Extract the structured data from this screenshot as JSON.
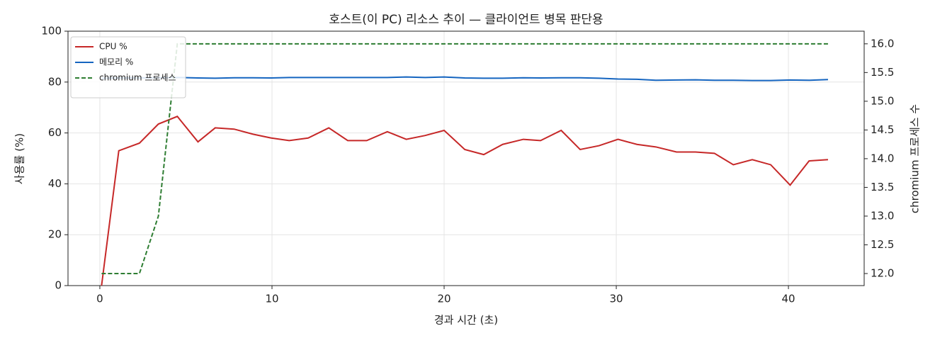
{
  "chart_data": {
    "type": "line",
    "title": "호스트(이 PC) 리소스 추이 — 클라이언트 병목 판단용",
    "xlabel": "경과 시간 (초)",
    "ylabel": "사용률 (%)",
    "y2label": "chromium 프로세스 수",
    "x": [
      0.1,
      1.1,
      2.3,
      3.4,
      4.5,
      5.7,
      6.7,
      7.8,
      8.9,
      9.96,
      11.0,
      12.1,
      13.3,
      14.4,
      15.5,
      16.7,
      17.8,
      18.9,
      20.0,
      21.2,
      22.3,
      23.4,
      24.6,
      25.6,
      26.8,
      27.9,
      29.0,
      30.1,
      31.2,
      32.3,
      33.5,
      34.6,
      35.7,
      36.8,
      37.9,
      38.97,
      40.1,
      41.2,
      42.3
    ],
    "series": [
      {
        "name": "CPU %",
        "color": "#c62828",
        "linestyle": "solid",
        "values": [
          0,
          53,
          56,
          63.5,
          66.5,
          56.5,
          62,
          61.5,
          59.5,
          58,
          57,
          58,
          62,
          57,
          57,
          60.5,
          57.5,
          59,
          61,
          53.5,
          51.5,
          55.5,
          57.5,
          57,
          61,
          53.5,
          55,
          57.5,
          55.5,
          54.5,
          52.5,
          52.5,
          52,
          47.5,
          49.5,
          47.5,
          39.5,
          49,
          49.5
        ]
      },
      {
        "name": "메모리 %",
        "color": "#1565c0",
        "linestyle": "solid",
        "values": [
          81.5,
          81.6,
          81.6,
          81.7,
          81.8,
          81.6,
          81.5,
          81.7,
          81.7,
          81.6,
          81.8,
          81.8,
          81.8,
          81.8,
          81.8,
          81.8,
          82.0,
          81.8,
          82.0,
          81.6,
          81.5,
          81.5,
          81.7,
          81.6,
          81.7,
          81.7,
          81.5,
          81.2,
          81.1,
          80.7,
          80.8,
          80.9,
          80.7,
          80.7,
          80.6,
          80.6,
          80.8,
          80.7,
          81.0
        ]
      },
      {
        "name": "chromium 프로세스",
        "color": "#2e7d32",
        "linestyle": "dashed",
        "axis": "y2",
        "values": [
          12,
          12,
          12,
          13,
          16,
          16,
          16,
          16,
          16,
          16,
          16,
          16,
          16,
          16,
          16,
          16,
          16,
          16,
          16,
          16,
          16,
          16,
          16,
          16,
          16,
          16,
          16,
          16,
          16,
          16,
          16,
          16,
          16,
          16,
          16,
          16,
          16,
          16,
          16
        ]
      }
    ],
    "xlim": [
      -1.85,
      44.4
    ],
    "xticks": [
      0,
      10,
      20,
      30,
      40
    ],
    "ylim": [
      0,
      100
    ],
    "yticks": [
      0,
      20,
      40,
      60,
      80,
      100
    ],
    "y2lim": [
      11.79,
      16.22
    ],
    "y2ticks": [
      {
        "value": 12,
        "label": "12.0"
      },
      12.5,
      {
        "value": 13,
        "label": "13.0"
      },
      13.5,
      {
        "value": 14,
        "label": "14.0"
      },
      14.5,
      {
        "value": 15,
        "label": "15.0"
      },
      15.5,
      {
        "value": 16,
        "label": "16.0"
      }
    ],
    "grid": true,
    "legend": "upper left"
  }
}
